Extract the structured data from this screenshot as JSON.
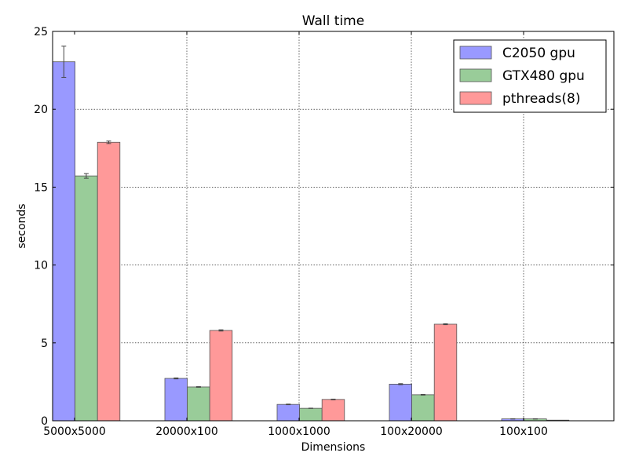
{
  "chart_data": {
    "type": "bar",
    "title": "Wall time",
    "xlabel": "Dimensions",
    "ylabel": "seconds",
    "categories": [
      "5000x5000",
      "20000x100",
      "1000x1000",
      "100x20000",
      "100x100"
    ],
    "ylim": [
      0,
      25
    ],
    "yticks": [
      0,
      5,
      10,
      15,
      20,
      25
    ],
    "grid": true,
    "legend_position": "top-right",
    "series": [
      {
        "name": "C2050 gpu",
        "color": "#9999ff",
        "values": [
          23.05,
          2.72,
          1.05,
          2.35,
          0.12
        ],
        "errors": [
          1.0,
          0.03,
          0.02,
          0.03,
          0.01
        ]
      },
      {
        "name": "GTX480 gpu",
        "color": "#99cc99",
        "values": [
          15.72,
          2.17,
          0.8,
          1.67,
          0.12
        ],
        "errors": [
          0.15,
          0.02,
          0.01,
          0.02,
          0.01
        ]
      },
      {
        "name": "pthreads(8)",
        "color": "#ff9999",
        "values": [
          17.88,
          5.8,
          1.37,
          6.2,
          0.04
        ],
        "errors": [
          0.08,
          0.04,
          0.02,
          0.03,
          0.0
        ]
      }
    ]
  }
}
